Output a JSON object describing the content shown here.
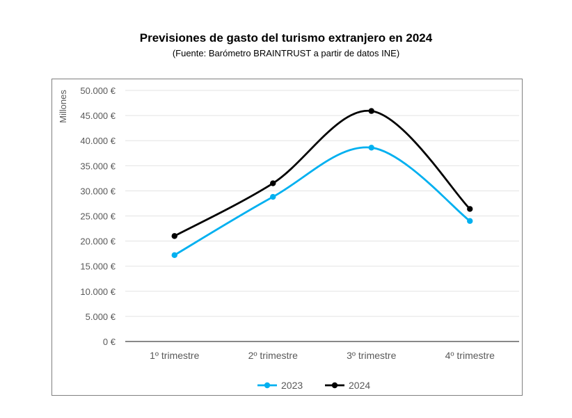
{
  "chart_data": {
    "type": "line",
    "title": "Previsiones de gasto del turismo extranjero en 2024",
    "subtitle": "(Fuente: Barómetro BRAINTRUST a partir de datos INE)",
    "ylabel": "Millones",
    "xlabel": "",
    "categories": [
      "1º trimestre",
      "2º trimestre",
      "3º trimestre",
      "4º trimestre"
    ],
    "yticks": [
      "0 €",
      "5.000 €",
      "10.000 €",
      "15.000 €",
      "20.000 €",
      "25.000 €",
      "30.000 €",
      "35.000 €",
      "40.000 €",
      "45.000 €",
      "50.000 €"
    ],
    "ylim": [
      0,
      50000
    ],
    "grid": true,
    "legend_position": "bottom",
    "smooth": true,
    "series": [
      {
        "name": "2023",
        "color": "#00B0F0",
        "values": [
          17200,
          28800,
          38600,
          24000
        ]
      },
      {
        "name": "2024",
        "color": "#000000",
        "values": [
          21000,
          31500,
          45900,
          26400
        ]
      }
    ]
  }
}
